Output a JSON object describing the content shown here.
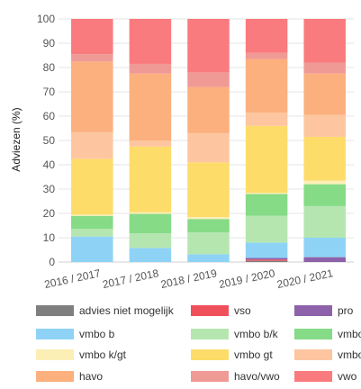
{
  "chart_data": {
    "type": "bar",
    "stacked": true,
    "ylabel": "Adviezen (%)",
    "ylim": [
      0,
      100
    ],
    "yticks": [
      0,
      10,
      20,
      30,
      40,
      50,
      60,
      70,
      80,
      90,
      100
    ],
    "grid": true,
    "legend_position": "bottom",
    "categories": [
      "2016 / 2017",
      "2017 / 2018",
      "2018 / 2019",
      "2019 / 2020",
      "2020 / 2021"
    ],
    "series": [
      {
        "name": "advies niet mogelijk",
        "color": "#7f7f7f",
        "values": [
          0,
          0,
          0,
          0.5,
          0
        ]
      },
      {
        "name": "vso",
        "color": "#f0505a",
        "values": [
          0,
          0,
          0,
          0.5,
          0
        ]
      },
      {
        "name": "pro",
        "color": "#8d62aa",
        "values": [
          0,
          0,
          0,
          0.7,
          2.0
        ]
      },
      {
        "name": "vmbo b",
        "color": "#8ed3f5",
        "values": [
          10.5,
          5.8,
          3.2,
          6.3,
          8.0
        ]
      },
      {
        "name": "vmbo b/k",
        "color": "#b5e6b0",
        "values": [
          3.2,
          6.0,
          9.0,
          11.0,
          13.0
        ]
      },
      {
        "name": "vmbo k",
        "color": "#86db86",
        "values": [
          5.3,
          8.0,
          5.5,
          9.0,
          9.0
        ]
      },
      {
        "name": "vmbo k/gt",
        "color": "#fcefb6",
        "values": [
          0.5,
          0.7,
          0.8,
          0.5,
          1.5
        ]
      },
      {
        "name": "vmbo gt",
        "color": "#fddc6a",
        "values": [
          23.0,
          27.0,
          22.5,
          27.5,
          18.0
        ]
      },
      {
        "name": "vmbo gt/havo",
        "color": "#fdc6a0",
        "values": [
          11.0,
          2.5,
          12.0,
          5.5,
          9.0
        ]
      },
      {
        "name": "havo",
        "color": "#fbb07e",
        "values": [
          29.0,
          27.5,
          19.0,
          22.0,
          17.0
        ]
      },
      {
        "name": "havo/vwo",
        "color": "#f09a96",
        "values": [
          3.0,
          4.0,
          6.0,
          2.5,
          4.5
        ]
      },
      {
        "name": "vwo",
        "color": "#f97b7e",
        "values": [
          14.5,
          18.5,
          22.0,
          14.0,
          18.0
        ]
      }
    ]
  }
}
